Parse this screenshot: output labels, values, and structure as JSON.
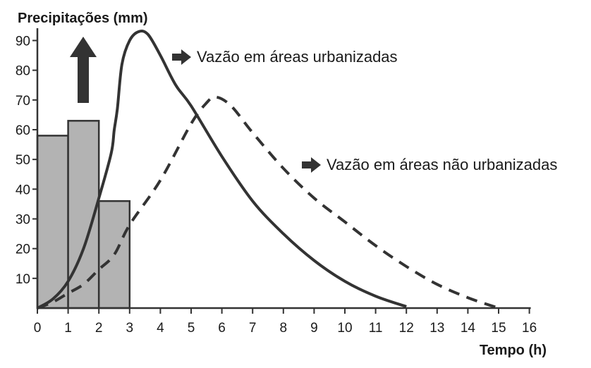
{
  "chart_data": {
    "type": "bar",
    "ylabel": "Precipitações (mm)",
    "xlabel": "Tempo (h)",
    "xlim": [
      0,
      16
    ],
    "ylim": [
      0,
      90
    ],
    "xticks": [
      "0",
      "1",
      "2",
      "3",
      "4",
      "5",
      "6",
      "7",
      "8",
      "9",
      "10",
      "11",
      "12",
      "13",
      "14",
      "15",
      "16"
    ],
    "yticks": [
      "10",
      "20",
      "30",
      "40",
      "50",
      "60",
      "70",
      "80",
      "90"
    ],
    "grid": false,
    "bars": [
      {
        "x0": 0,
        "x1": 1,
        "value": 58
      },
      {
        "x0": 1,
        "x1": 2,
        "value": 63
      },
      {
        "x0": 2,
        "x1": 3,
        "value": 36
      }
    ],
    "series": [
      {
        "name": "Vazão em áreas urbanizadas",
        "style": "solid",
        "points": [
          [
            0,
            0
          ],
          [
            0.5,
            3
          ],
          [
            1,
            9
          ],
          [
            1.5,
            20
          ],
          [
            2,
            37
          ],
          [
            2.4,
            52
          ],
          [
            2.5,
            60
          ],
          [
            2.6,
            67
          ],
          [
            2.75,
            82
          ],
          [
            3,
            90
          ],
          [
            3.3,
            93
          ],
          [
            3.6,
            92
          ],
          [
            4,
            85
          ],
          [
            4.5,
            75
          ],
          [
            5,
            68
          ],
          [
            6,
            51
          ],
          [
            7,
            36
          ],
          [
            8,
            25
          ],
          [
            9,
            16
          ],
          [
            10,
            9
          ],
          [
            11,
            4
          ],
          [
            12,
            0.5
          ]
        ]
      },
      {
        "name": "Vazão em áreas não urbanizadas",
        "style": "dashed",
        "points": [
          [
            0,
            0
          ],
          [
            0.5,
            2
          ],
          [
            1,
            5
          ],
          [
            1.5,
            8
          ],
          [
            2,
            13
          ],
          [
            2.5,
            18
          ],
          [
            3,
            28
          ],
          [
            4,
            43
          ],
          [
            5,
            62
          ],
          [
            5.5,
            69
          ],
          [
            5.8,
            71
          ],
          [
            6.3,
            68
          ],
          [
            7,
            59
          ],
          [
            8,
            47
          ],
          [
            9,
            37
          ],
          [
            10,
            29
          ],
          [
            11,
            21
          ],
          [
            12,
            14
          ],
          [
            13,
            8
          ],
          [
            14,
            3.5
          ],
          [
            15,
            0
          ]
        ]
      }
    ],
    "annotations": {
      "urban": "Vazão em áreas urbanizadas",
      "rural": "Vazão em áreas não urbanizadas"
    },
    "colors": {
      "bar_fill": "#b3b3b3",
      "stroke": "#333333",
      "text": "#1a1a1a"
    },
    "icons": [
      "up-arrow-icon",
      "right-arrow-icon"
    ]
  }
}
